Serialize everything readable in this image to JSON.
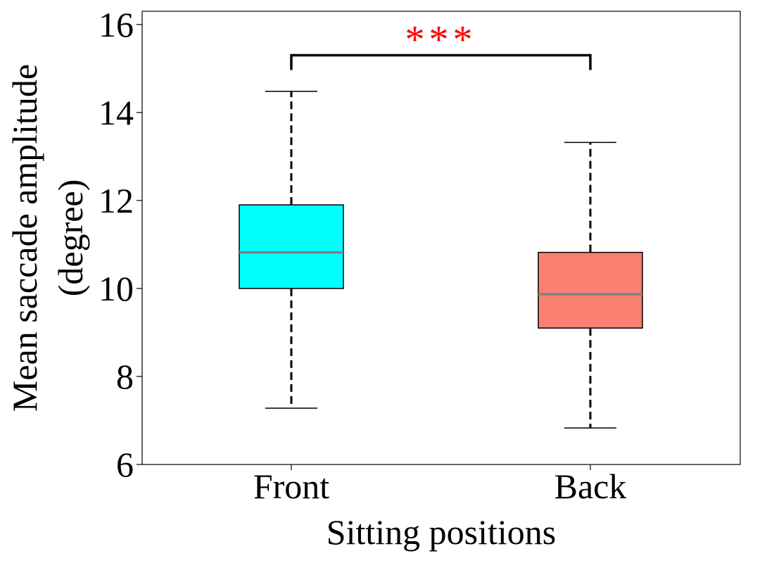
{
  "chart_data": {
    "type": "box",
    "xlabel": "Sitting positions",
    "ylabel_lines": [
      "Mean saccade amplitude",
      "(degree)"
    ],
    "ylim": [
      6,
      16.3
    ],
    "yticks": [
      6,
      8,
      10,
      12,
      14,
      16
    ],
    "categories": [
      "Front",
      "Back"
    ],
    "boxes": [
      {
        "category": "Front",
        "whisker_low": 7.28,
        "q1": 10.0,
        "median": 10.82,
        "q3": 11.9,
        "whisker_high": 14.48,
        "color": "#00ffff"
      },
      {
        "category": "Back",
        "whisker_low": 6.83,
        "q1": 9.1,
        "median": 9.87,
        "q3": 10.82,
        "whisker_high": 13.32,
        "color": "#fa8072"
      }
    ],
    "median_color": "#808080",
    "significance": {
      "between": [
        "Front",
        "Back"
      ],
      "bracket_y": 15.3,
      "label": "***",
      "color": "#ff0000"
    },
    "grid": false
  }
}
